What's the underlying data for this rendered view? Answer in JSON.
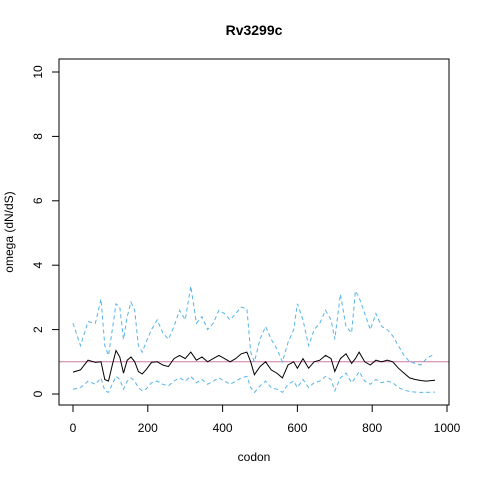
{
  "chart_data": {
    "type": "line",
    "title": "Rv3299c",
    "xlabel": "codon",
    "ylabel": "omega (dN/dS)",
    "xlim": [
      0,
      1000
    ],
    "ylim": [
      0,
      10
    ],
    "x_ticks": [
      0,
      200,
      400,
      600,
      800,
      1000
    ],
    "y_ticks": [
      0,
      2,
      4,
      6,
      8,
      10
    ],
    "grid": false,
    "reference_line": {
      "y": 1,
      "color": "#cc79a7"
    },
    "colors": {
      "omega": "#000000",
      "ci": "#56b4e9"
    },
    "x": [
      0,
      20,
      40,
      60,
      75,
      85,
      95,
      105,
      115,
      125,
      135,
      145,
      155,
      165,
      175,
      185,
      195,
      210,
      225,
      240,
      255,
      270,
      285,
      300,
      315,
      330,
      345,
      360,
      375,
      390,
      405,
      420,
      435,
      450,
      465,
      475,
      485,
      500,
      515,
      530,
      545,
      560,
      575,
      590,
      600,
      615,
      630,
      645,
      660,
      675,
      690,
      700,
      715,
      730,
      745,
      755,
      765,
      780,
      795,
      810,
      825,
      840,
      855,
      870,
      885,
      900,
      915,
      930,
      945,
      960,
      968
    ],
    "series": [
      {
        "name": "",
        "style": "solid",
        "values": [
          0.68,
          0.75,
          1.05,
          0.98,
          1.0,
          0.45,
          0.4,
          0.9,
          1.35,
          1.15,
          0.65,
          1.05,
          1.15,
          1.0,
          0.7,
          0.62,
          0.75,
          0.98,
          1.0,
          0.9,
          0.85,
          1.1,
          1.2,
          1.1,
          1.3,
          1.05,
          1.15,
          1.0,
          1.1,
          1.2,
          1.1,
          1.0,
          1.1,
          1.25,
          1.3,
          1.0,
          0.6,
          0.85,
          1.0,
          0.75,
          0.65,
          0.5,
          0.9,
          1.0,
          0.8,
          1.1,
          0.8,
          1.0,
          1.05,
          1.2,
          1.1,
          0.7,
          1.1,
          1.25,
          0.95,
          1.1,
          1.3,
          1.0,
          0.9,
          1.05,
          1.0,
          1.05,
          1.0,
          0.8,
          0.65,
          0.5,
          0.45,
          0.42,
          0.4,
          0.42,
          0.43
        ]
      },
      {
        "name": "",
        "style": "dashed",
        "values": [
          2.2,
          1.5,
          2.25,
          2.2,
          2.95,
          1.5,
          1.2,
          2.0,
          2.8,
          2.7,
          1.7,
          2.4,
          2.85,
          2.6,
          1.5,
          1.3,
          1.6,
          2.0,
          2.3,
          1.9,
          1.7,
          2.1,
          2.6,
          2.3,
          3.35,
          2.2,
          2.4,
          2.0,
          2.2,
          2.6,
          2.5,
          2.3,
          2.5,
          2.7,
          2.65,
          1.3,
          1.0,
          1.7,
          2.1,
          1.7,
          1.4,
          1.0,
          1.6,
          2.0,
          2.8,
          2.3,
          1.5,
          2.0,
          2.2,
          2.6,
          2.3,
          1.7,
          3.1,
          2.1,
          1.9,
          3.2,
          3.0,
          2.5,
          2.0,
          2.5,
          2.1,
          2.0,
          1.8,
          1.5,
          1.2,
          1.0,
          0.95,
          0.9,
          1.1,
          1.2,
          1.25
        ]
      },
      {
        "name": "",
        "style": "dashed",
        "values": [
          0.15,
          0.2,
          0.4,
          0.3,
          0.5,
          0.1,
          0.05,
          0.3,
          0.55,
          0.45,
          0.15,
          0.4,
          0.5,
          0.4,
          0.2,
          0.1,
          0.15,
          0.35,
          0.4,
          0.3,
          0.25,
          0.4,
          0.5,
          0.4,
          0.55,
          0.35,
          0.45,
          0.3,
          0.4,
          0.5,
          0.4,
          0.3,
          0.4,
          0.5,
          0.55,
          0.2,
          0.05,
          0.25,
          0.4,
          0.2,
          0.15,
          0.05,
          0.3,
          0.4,
          0.2,
          0.45,
          0.2,
          0.35,
          0.4,
          0.55,
          0.45,
          0.1,
          0.5,
          0.65,
          0.35,
          0.5,
          0.7,
          0.4,
          0.3,
          0.45,
          0.35,
          0.4,
          0.35,
          0.2,
          0.12,
          0.08,
          0.06,
          0.05,
          0.05,
          0.06,
          0.06
        ]
      }
    ]
  }
}
